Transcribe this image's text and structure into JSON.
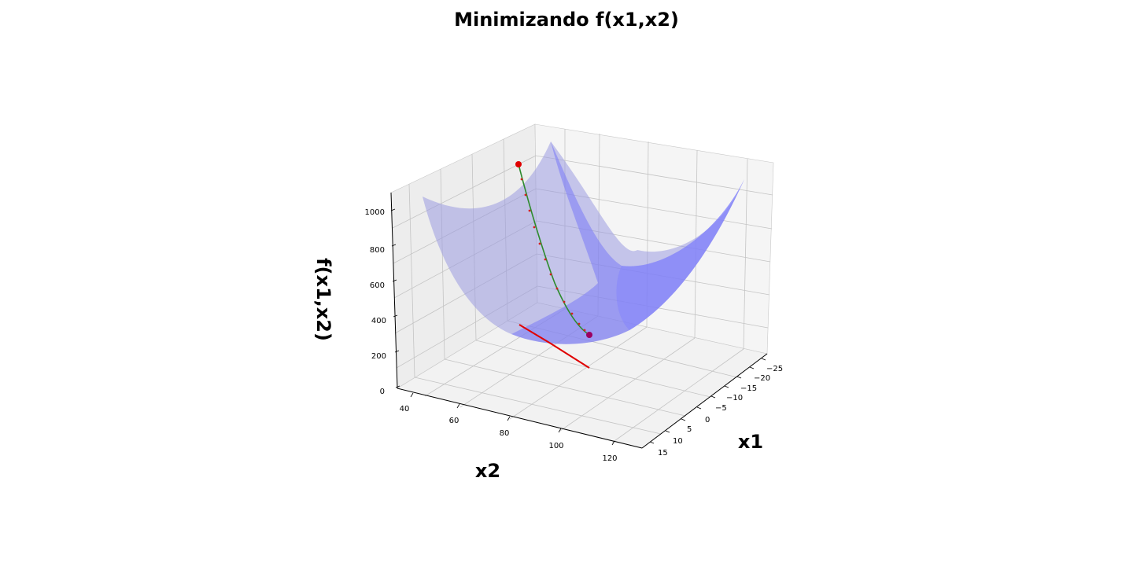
{
  "chart_data": {
    "type": "surface3d",
    "title": "Minimizando f(x1,x2)",
    "xlabel": "x1",
    "ylabel": "x2",
    "zlabel": "f(x1,x2)",
    "xticks": [
      "−25",
      "−20",
      "−15",
      "−10",
      "−5",
      "0",
      "5",
      "10",
      "15"
    ],
    "yticks": [
      "40",
      "60",
      "80",
      "100",
      "120"
    ],
    "zticks": [
      "0",
      "200",
      "400",
      "600",
      "800",
      "1000"
    ],
    "surface_color": "#6b6bf0",
    "panes_color": "#f2f2f2",
    "grid": true,
    "series": [
      {
        "kind": "path_on_surface",
        "color": "#2e8b2e",
        "marker_color": "#d42020",
        "start_marker_color": "#e00000",
        "end_marker_color": "#9b0060"
      },
      {
        "kind": "path_projection_floor",
        "color": "#e00000"
      }
    ]
  }
}
